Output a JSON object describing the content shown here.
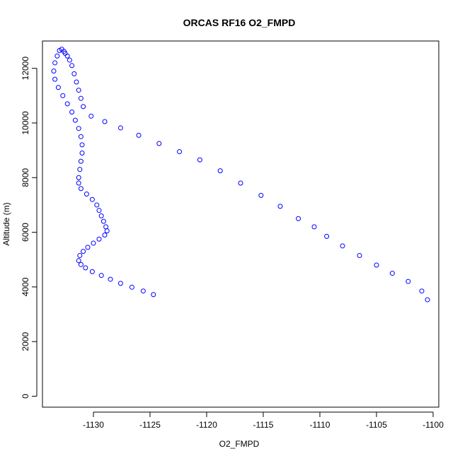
{
  "chart_data": {
    "type": "scatter",
    "title": "ORCAS RF16 O2_FMPD",
    "xlabel": "O2_FMPD",
    "ylabel": "Altitude (m)",
    "xlim": [
      -1134.5,
      -1099.5
    ],
    "ylim": [
      -400,
      13000
    ],
    "xticks": [
      -1130,
      -1125,
      -1120,
      -1115,
      -1110,
      -1105,
      -1100
    ],
    "yticks": [
      0,
      2000,
      4000,
      6000,
      8000,
      10000,
      12000
    ],
    "xtick_labels": [
      "-1130",
      "-1125",
      "-1120",
      "-1115",
      "-1110",
      "-1105",
      "-1100"
    ],
    "ytick_labels": [
      "0",
      "2000",
      "4000",
      "6000",
      "8000",
      "10000",
      "12000"
    ],
    "marker": "open-circle",
    "color": "#0000ff",
    "grid": false,
    "legend": "none",
    "series": [
      {
        "x": [
          -1124.7,
          -1125.6,
          -1126.6,
          -1127.6,
          -1128.5,
          -1129.3,
          -1130.1,
          -1130.7,
          -1131.1,
          -1131.3,
          -1131.2,
          -1130.9,
          -1130.5,
          -1130.0,
          -1129.5,
          -1129.0,
          -1128.8,
          -1128.9,
          -1129.1,
          -1129.3,
          -1129.5,
          -1129.7,
          -1130.1,
          -1130.6,
          -1131.1,
          -1131.3,
          -1131.3,
          -1131.2,
          -1131.1,
          -1131.0,
          -1131.0,
          -1131.1,
          -1131.3,
          -1131.6,
          -1131.9,
          -1132.3,
          -1132.7,
          -1133.1,
          -1133.4,
          -1133.5,
          -1133.4,
          -1133.2,
          -1133.0,
          -1132.8,
          -1132.6,
          -1132.5,
          -1132.3,
          -1132.1,
          -1131.9,
          -1131.7,
          -1131.5,
          -1131.3,
          -1131.1,
          -1130.9,
          -1130.2,
          -1129.0,
          -1127.6,
          -1126.0,
          -1124.2,
          -1122.4,
          -1120.6,
          -1118.8,
          -1117.0,
          -1115.2,
          -1113.5,
          -1111.9,
          -1110.5,
          -1109.4,
          -1108.0,
          -1106.5,
          -1105.0,
          -1103.6,
          -1102.2,
          -1101.0,
          -1100.5
        ],
        "y": [
          3720,
          3850,
          3990,
          4130,
          4280,
          4420,
          4560,
          4700,
          4820,
          4960,
          5150,
          5300,
          5450,
          5600,
          5750,
          5900,
          6050,
          6200,
          6400,
          6600,
          6800,
          7000,
          7200,
          7400,
          7600,
          7800,
          8000,
          8300,
          8600,
          8900,
          9200,
          9500,
          9800,
          10100,
          10400,
          10700,
          11000,
          11300,
          11600,
          11900,
          12200,
          12450,
          12650,
          12700,
          12620,
          12550,
          12450,
          12300,
          12100,
          11800,
          11500,
          11200,
          10900,
          10600,
          10250,
          10050,
          9820,
          9550,
          9250,
          8950,
          8650,
          8250,
          7800,
          7350,
          6950,
          6500,
          6200,
          5850,
          5500,
          5150,
          4800,
          4500,
          4200,
          3850,
          3530
        ]
      }
    ]
  }
}
